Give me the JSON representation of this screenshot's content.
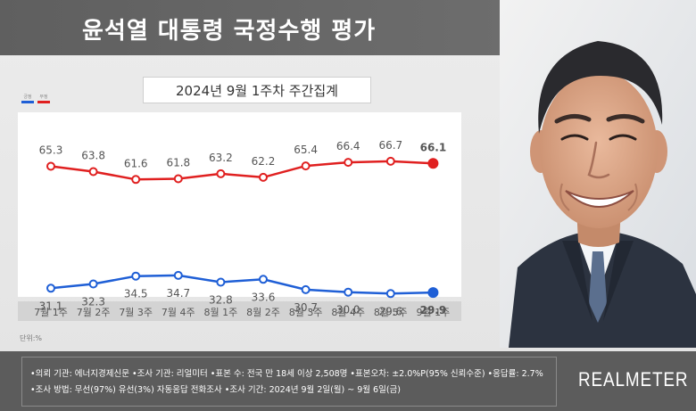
{
  "header": {
    "title": "윤석열 대통령 국정수행 평가"
  },
  "subtitle": "2024년 9월 1주차 주간집계",
  "unit_label": "단위:%",
  "colors": {
    "approve": "#1f5fd6",
    "disapprove": "#e02020"
  },
  "chart_data": {
    "type": "line",
    "title": "2024년 9월 1주차 주간집계",
    "categories": [
      "7월 1주",
      "7월 2주",
      "7월 3주",
      "7월 4주",
      "8월 1주",
      "8월 2주",
      "8월 3주",
      "8월 4주",
      "8월 5주",
      "9월 1주"
    ],
    "series": [
      {
        "name": "부정",
        "color": "#e02020",
        "values": [
          65.3,
          63.8,
          61.6,
          61.8,
          63.2,
          62.2,
          65.4,
          66.4,
          66.7,
          66.1
        ]
      },
      {
        "name": "긍정",
        "color": "#1f5fd6",
        "values": [
          31.1,
          32.3,
          34.5,
          34.7,
          32.8,
          33.6,
          30.7,
          30.0,
          29.6,
          29.9
        ]
      }
    ],
    "value_labels": {
      "disapprove": [
        "65.3",
        "63.8",
        "61.6",
        "61.8",
        "63.2",
        "62.2",
        "65.4",
        "66.4",
        "66.7",
        "66.1"
      ],
      "approve": [
        "31.1",
        "32.3",
        "34.5",
        "34.7",
        "32.8",
        "33.6",
        "30.7",
        "30.0",
        "29.6",
        "29.9"
      ]
    },
    "legend": [
      "긍정",
      "부정"
    ],
    "legend_position": "top-left",
    "grid": false
  },
  "footer": {
    "line1": "•의뢰 기관: 에너지경제신문 •조사 기관: 리얼미터 •표본 수: 전국 만 18세 이상 2,508명 •표본오차: ±2.0%P(95% 신뢰수준) •응답률: 2.7%",
    "line2": "•조사 방법: 무선(97%) 유선(3%) 자동응답 전화조사 •조사 기간: 2024년 9월 2일(월) ~ 9월 6일(금)",
    "brand": "REALMETER"
  }
}
